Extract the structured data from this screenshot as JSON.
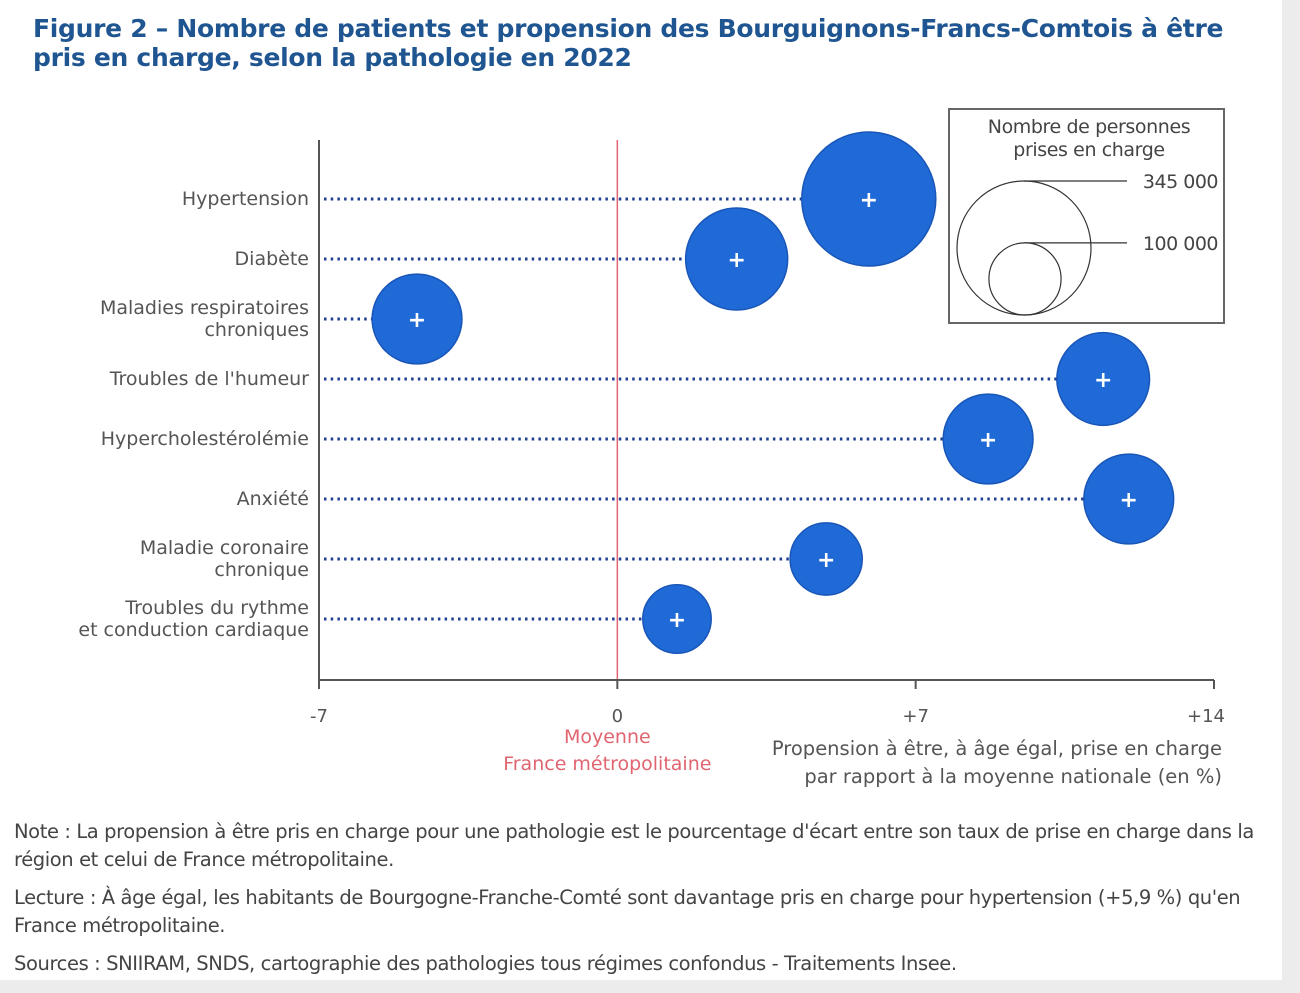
{
  "title": "Figure 2 – Nombre de patients et propension des Bourguignons-Francs-Comtois à être pris en charge, selon la pathologie en 2022",
  "chart_data": {
    "type": "scatter",
    "subtype": "bubble",
    "categories": [
      [
        "Hypertension"
      ],
      [
        "Diabète"
      ],
      [
        "Maladies respiratoires",
        "chroniques"
      ],
      [
        "Troubles de l'humeur"
      ],
      [
        "Hypercholestérolémie"
      ],
      [
        "Anxiété"
      ],
      [
        "Maladie coronaire",
        "chronique"
      ],
      [
        "Troubles du rythme",
        "et conduction cardiaque"
      ]
    ],
    "x_values": [
      5.9,
      2.8,
      -4.7,
      11.4,
      8.7,
      12.0,
      4.9,
      1.4
    ],
    "sizes": [
      345000,
      200000,
      155000,
      165000,
      155000,
      155000,
      100000,
      90000
    ],
    "xlim": [
      -7,
      14
    ],
    "xticks": [
      "-7",
      "0",
      "+7",
      "+14"
    ],
    "xtick_values": [
      -7,
      0,
      7,
      14
    ],
    "xlabel": [
      "Propension à être, à âge égal, prise en charge",
      "par rapport à la moyenne nationale (en %)"
    ],
    "reference_line": {
      "x": 0,
      "label": [
        "Moyenne",
        "France métropolitaine"
      ],
      "color": "#e06570"
    },
    "legend": {
      "title": [
        "Nombre de personnes",
        "prises en charge"
      ],
      "sizes": [
        345000,
        100000
      ],
      "labels": [
        "345 000",
        "100 000"
      ],
      "placement": "top-right"
    },
    "bubble_color": "#1f6ad6",
    "bubble_marker": "+",
    "grid": false
  },
  "notes": {
    "note": "Note : La propension à être pris en charge pour une pathologie est le pourcentage d'écart entre son taux de prise en charge dans la région et celui de France métropolitaine.",
    "lecture": "Lecture : À âge égal, les habitants de Bourgogne-Franche-Comté sont davantage pris en charge pour hypertension (+5,9 %) qu'en France métropolitaine.",
    "sources": "Sources : SNIIRAM, SNDS, cartographie des pathologies tous régimes confondus - Traitements Insee."
  }
}
